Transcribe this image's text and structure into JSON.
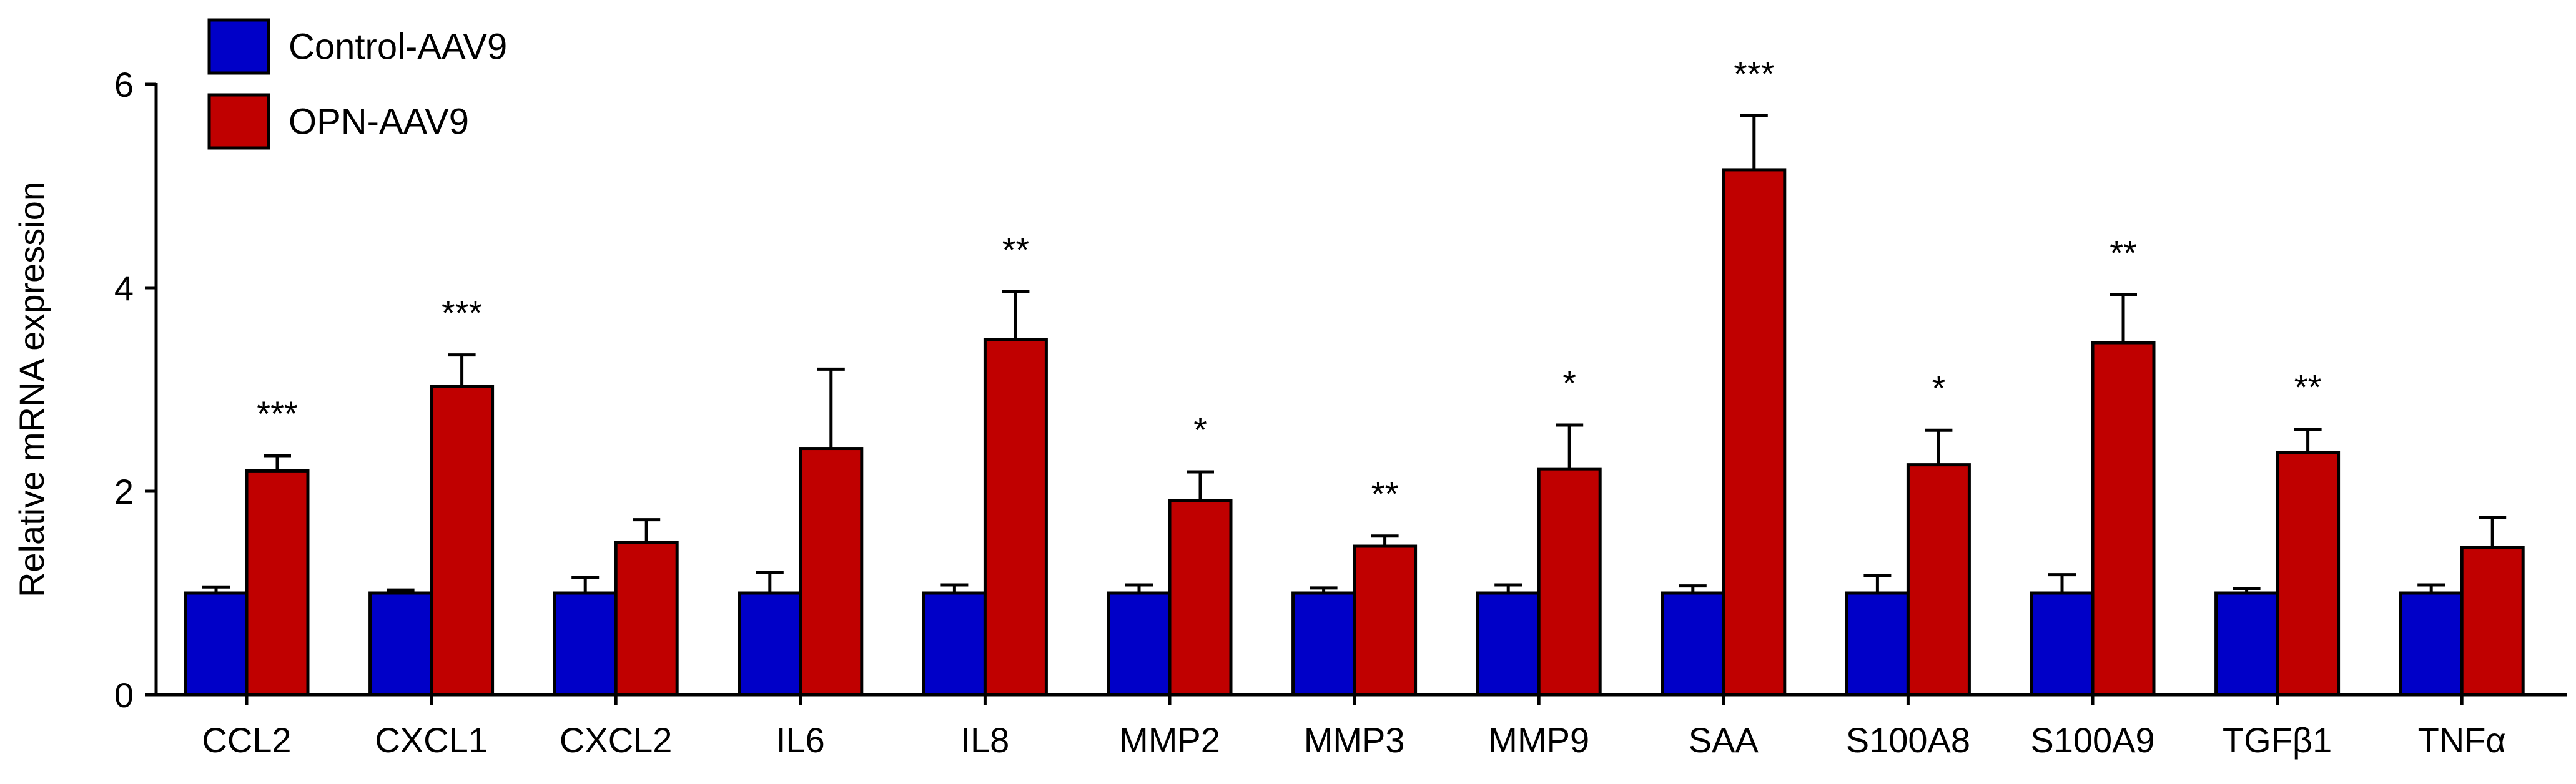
{
  "chart_data": {
    "type": "bar",
    "title": "",
    "xlabel": "",
    "ylabel": "Relative mRNA expression",
    "ylim": [
      0,
      6
    ],
    "yticks": [
      0,
      2,
      4,
      6
    ],
    "legend_position": "top-left",
    "categories": [
      "CCL2",
      "CXCL1",
      "CXCL2",
      "IL6",
      "IL8",
      "MMP2",
      "MMP3",
      "MMP9",
      "SAA",
      "S100A8",
      "S100A9",
      "TGFβ1",
      "TNFα"
    ],
    "series": [
      {
        "name": "Control-AAV9",
        "color": "#0000c8",
        "values": [
          1.0,
          1.0,
          1.0,
          1.0,
          1.0,
          1.0,
          1.0,
          1.0,
          1.0,
          1.0,
          1.0,
          1.0,
          1.0
        ],
        "errors": [
          0.06,
          0.03,
          0.15,
          0.2,
          0.08,
          0.08,
          0.05,
          0.08,
          0.07,
          0.17,
          0.18,
          0.04,
          0.08
        ]
      },
      {
        "name": "OPN-AAV9",
        "color": "#c00000",
        "values": [
          2.2,
          3.03,
          1.5,
          2.42,
          3.49,
          1.91,
          1.46,
          2.22,
          5.16,
          2.26,
          3.46,
          2.38,
          1.45
        ],
        "errors": [
          0.15,
          0.31,
          0.22,
          0.78,
          0.47,
          0.28,
          0.1,
          0.43,
          0.53,
          0.34,
          0.47,
          0.23,
          0.29
        ]
      }
    ],
    "significance": [
      "***",
      "***",
      "",
      "",
      "**",
      "*",
      "**",
      "*",
      "***",
      "*",
      "**",
      "**",
      ""
    ]
  }
}
